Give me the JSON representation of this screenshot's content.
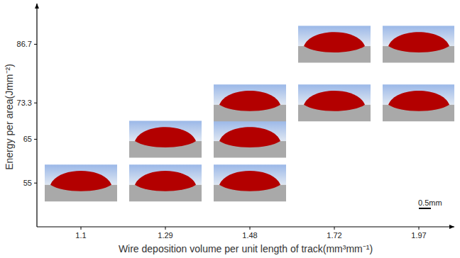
{
  "chart_data": {
    "type": "scatter",
    "x_label": "Wire deposition volume per unit length of track(mm³mm⁻¹)",
    "y_label": "Energy per area(Jmm⁻²)",
    "categories": [
      "1.1",
      "1.29",
      "1.48",
      "1.72",
      "1.97"
    ],
    "series": [
      {
        "x": [
          "1.1",
          "1.29",
          "1.48",
          "1.29",
          "1.48",
          "1.48",
          "1.72",
          "1.97",
          "1.72",
          "1.97"
        ],
        "values": [
          55,
          55,
          55,
          65,
          65,
          73.3,
          73.3,
          73.3,
          86.7,
          86.7
        ],
        "color": "#b30000",
        "marker": "bead-section"
      }
    ],
    "ylim": [
      45,
      96
    ],
    "yticks": [
      55,
      65,
      73.3,
      86.7
    ],
    "grid": false,
    "annotations": [
      "0.5mm"
    ]
  }
}
